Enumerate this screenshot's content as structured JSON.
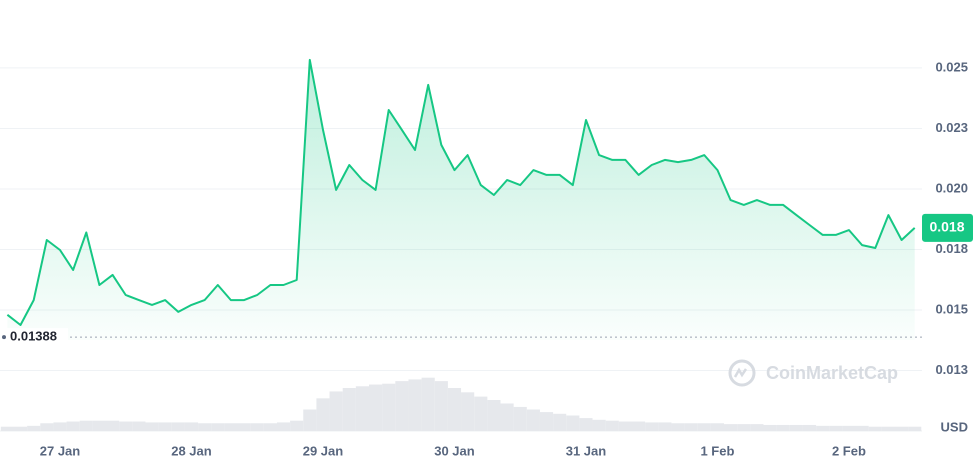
{
  "chart_data": {
    "type": "line",
    "color": "#16c784",
    "values": [
      0.0148,
      0.01438,
      0.01541,
      0.01789,
      0.01748,
      0.01665,
      0.0182,
      0.01603,
      0.01645,
      0.01562,
      0.01541,
      0.01521,
      0.01541,
      0.01492,
      0.01521,
      0.01541,
      0.01603,
      0.01541,
      0.01541,
      0.01562,
      0.01603,
      0.01603,
      0.01624,
      0.02533,
      0.02244,
      0.01996,
      0.02099,
      0.02037,
      0.01996,
      0.02326,
      0.02244,
      0.02161,
      0.0243,
      0.02182,
      0.02078,
      0.0214,
      0.02016,
      0.01975,
      0.02037,
      0.02016,
      0.02078,
      0.02058,
      0.02058,
      0.02016,
      0.02285,
      0.0214,
      0.0212,
      0.0212,
      0.02058,
      0.02099,
      0.0212,
      0.02111,
      0.0212,
      0.0214,
      0.02078,
      0.01954,
      0.01934,
      0.01954,
      0.01934,
      0.01934,
      0.01892,
      0.01851,
      0.0181,
      0.0181,
      0.0183,
      0.01768,
      0.01756,
      0.01892,
      0.01789,
      0.01839
    ],
    "ylim": [
      0.01,
      0.0276
    ],
    "yticks": [
      {
        "value": 0.0125,
        "label": "0.013"
      },
      0.015,
      {
        "value": 0.0175,
        "label": "0.018"
      },
      {
        "value": 0.02,
        "label": "0.020"
      },
      {
        "value": 0.0225,
        "label": "0.023"
      },
      0.025
    ],
    "xlim": [
      0,
      69
    ],
    "xticks": [
      {
        "value": 4,
        "label": "27 Jan"
      },
      {
        "value": 14,
        "label": "28 Jan"
      },
      {
        "value": 24,
        "label": "29 Jan"
      },
      {
        "value": 34,
        "label": "30 Jan"
      },
      {
        "value": 44,
        "label": "31 Jan"
      },
      {
        "value": 54,
        "label": "1 Feb"
      },
      {
        "value": 64,
        "label": "2 Feb"
      }
    ],
    "grid": true,
    "reference_price": 0.01388,
    "current_price": {
      "value": 0.01839,
      "label": "0.018"
    },
    "currency_label": "USD",
    "watermark": "CoinMarketCap",
    "volume": {
      "color": "#e6e8ec",
      "ylim": [
        0,
        100
      ],
      "values": [
        5,
        5,
        6,
        9,
        10,
        11,
        12,
        12,
        12,
        11,
        11,
        10,
        10,
        10,
        10,
        9,
        9,
        9,
        9,
        9,
        9,
        10,
        12,
        25,
        38,
        46,
        50,
        52,
        54,
        55,
        58,
        60,
        62,
        58,
        50,
        45,
        40,
        36,
        32,
        28,
        25,
        22,
        20,
        18,
        15,
        13,
        12,
        11,
        11,
        10,
        10,
        9,
        9,
        9,
        9,
        8,
        8,
        8,
        7,
        7,
        7,
        7,
        6,
        6,
        6,
        6,
        5,
        5,
        5,
        5
      ]
    }
  }
}
